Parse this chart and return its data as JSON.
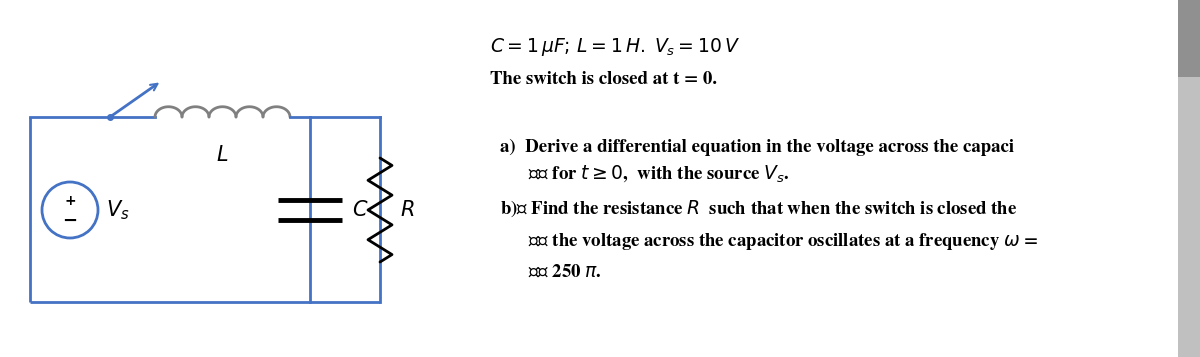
{
  "bg_color": "#ffffff",
  "circuit_color": "#4472C4",
  "text_color": "#000000",
  "component_color": "#000000",
  "line_width": 2.0,
  "fig_width": 12.0,
  "fig_height": 3.57,
  "dpi": 100,
  "title_line1": "$C = 1\\,\\mu F;\\, L = 1\\,H.\\; V_s = 10\\,V$",
  "title_line2": "The switch is closed at t = 0.",
  "label_L": "$L$",
  "label_C": "$C$",
  "label_R": "$R$",
  "label_Vs": "$V_s$",
  "part_a": "a)  Derive a differential equation in the voltage across the capaci",
  "part_a2": "   for $t\\geq 0$,  with the source $V_s$.",
  "part_b": "b)  Find the resistance $R$  such that when the switch is closed the",
  "part_b2": "   the voltage across the capacitor oscillates at a frequency $\\omega$ =",
  "part_b3": "   250 $\\pi$.",
  "scrollbar_color": "#c0c0c0",
  "scrollbar_thumb": "#909090"
}
